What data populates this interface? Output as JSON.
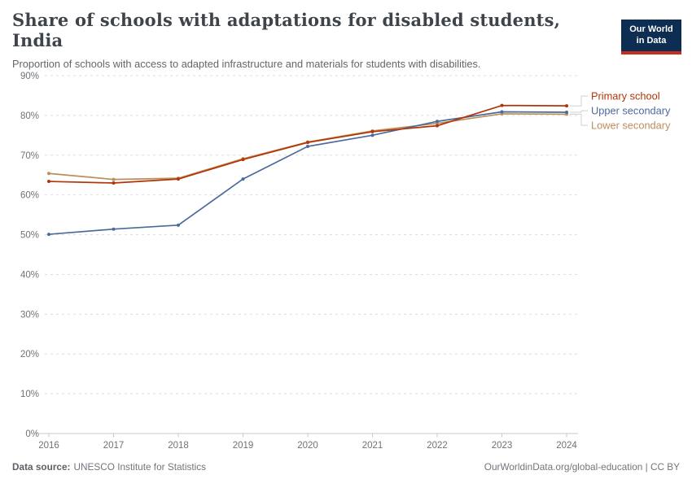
{
  "header": {
    "title": "Share of schools with adaptations for disabled students, India",
    "subtitle": "Proportion of schools with access to adapted infrastructure and materials for students with disabilities.",
    "logo": {
      "line1": "Our World",
      "line2": "in Data",
      "bg_color": "#0d2d52",
      "accent_color": "#c52e19"
    }
  },
  "chart_data": {
    "type": "line",
    "x": [
      2016,
      2017,
      2018,
      2019,
      2020,
      2021,
      2022,
      2023,
      2024
    ],
    "series": [
      {
        "name": "Primary school",
        "color": "#B13507",
        "values": [
          63.4,
          63.0,
          64.0,
          68.9,
          73.2,
          75.9,
          77.4,
          82.5,
          82.4
        ]
      },
      {
        "name": "Upper secondary",
        "color": "#4C6A9C",
        "values": [
          50.1,
          51.4,
          52.4,
          64.0,
          72.2,
          75.0,
          78.5,
          80.9,
          80.8
        ]
      },
      {
        "name": "Lower secondary",
        "color": "#BC8E5A",
        "values": [
          65.4,
          63.9,
          64.2,
          69.1,
          73.3,
          76.1,
          78.0,
          80.4,
          80.3
        ]
      }
    ],
    "title": "Share of schools with adaptations for disabled students, India",
    "xlabel": "",
    "ylabel": "",
    "ylim": [
      0,
      90
    ],
    "y_tick_step": 10,
    "y_tick_suffix": "%",
    "grid": "horizontal dashed",
    "legend_position": "right of line ends, labels colored as lines"
  },
  "footer": {
    "source_label": "Data source:",
    "source_value": "UNESCO Institute for Statistics",
    "right_text": "OurWorldinData.org/global-education | CC BY"
  }
}
